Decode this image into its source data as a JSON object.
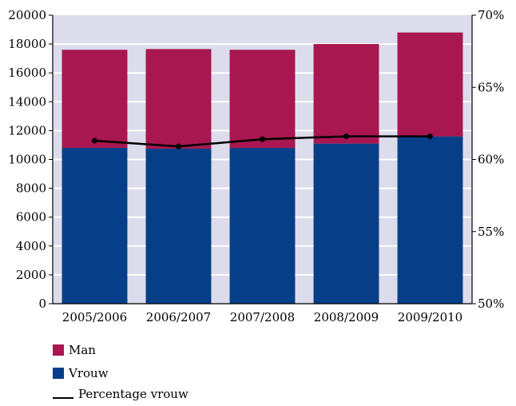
{
  "chart_data": {
    "type": "bar",
    "stacked": true,
    "categories": [
      "2005/2006",
      "2006/2007",
      "2007/2008",
      "2008/2009",
      "2009/2010"
    ],
    "series": [
      {
        "name": "Vrouw",
        "values": [
          10800,
          10750,
          10800,
          11100,
          11600
        ],
        "color": "#063f88"
      },
      {
        "name": "Man",
        "values": [
          6800,
          6900,
          6800,
          6900,
          7200
        ],
        "color": "#a8174f"
      }
    ],
    "line_series": {
      "name": "Percentage vrouw",
      "values": [
        61.3,
        60.9,
        61.4,
        61.6,
        61.6
      ],
      "axis": "right",
      "color": "#000000"
    },
    "ylim": [
      0,
      20000
    ],
    "yticks": [
      "0",
      "2000",
      "4000",
      "6000",
      "8000",
      "10000",
      "12000",
      "14000",
      "16000",
      "18000",
      "20000"
    ],
    "y2lim": [
      50,
      70
    ],
    "y2ticks": [
      "50%",
      "55%",
      "60%",
      "65%",
      "70%"
    ],
    "grid": true,
    "plot_background": "#dcdcec",
    "legend_position": "bottom-left"
  },
  "legend": {
    "man_label": "Man",
    "vrouw_label": "Vrouw",
    "percentage_label": "Percentage vrouw"
  }
}
